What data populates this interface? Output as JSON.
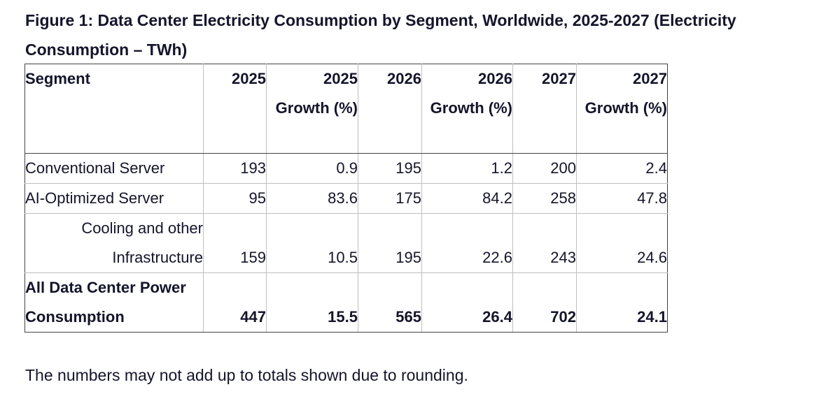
{
  "figure": {
    "title": "Figure 1: Data Center Electricity Consumption by Segment, Worldwide, 2025-2027 (Electricity Consumption – TWh)"
  },
  "table": {
    "headers": [
      "Segment",
      "2025",
      "2025 Growth (%)",
      "2026",
      "2026 Growth (%)",
      "2027",
      "2027 Growth (%)"
    ],
    "rows": [
      {
        "segment": "Conventional Server",
        "values": [
          "193",
          "0.9",
          "195",
          "1.2",
          "200",
          "2.4"
        ]
      },
      {
        "segment": "AI-Optimized Server",
        "values": [
          "95",
          "83.6",
          "175",
          "84.2",
          "258",
          "47.8"
        ]
      },
      {
        "segment": "Cooling and other Infrastructure",
        "values": [
          "159",
          "10.5",
          "195",
          "22.6",
          "243",
          "24.6"
        ]
      }
    ],
    "total": {
      "segment": "All Data Center Power Consumption",
      "values": [
        "447",
        "15.5",
        "565",
        "26.4",
        "702",
        "24.1"
      ]
    }
  },
  "footnote": "The numbers may not add up to totals shown due to rounding."
}
